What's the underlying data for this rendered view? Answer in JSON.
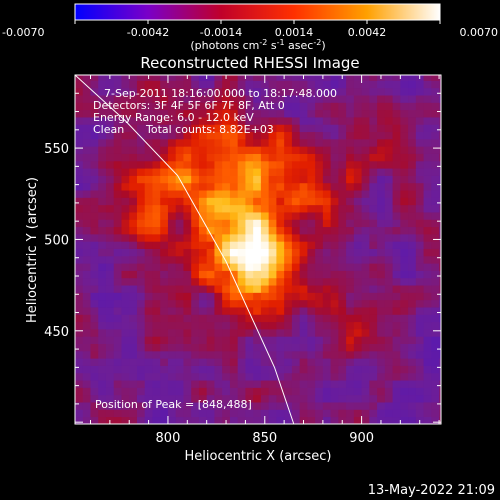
{
  "chart_data": {
    "type": "heatmap",
    "title": "Reconstructed RHESSI Image",
    "xlabel": "Heliocentric X (arcsec)",
    "ylabel": "Heliocentric Y (arcsec)",
    "xlim": [
      752,
      941
    ],
    "ylim": [
      399,
      590
    ],
    "x_ticks": [
      800,
      850,
      900
    ],
    "y_ticks": [
      450,
      500,
      550
    ],
    "colorbar": {
      "ticks": [
        "-0.0070",
        "-0.0042",
        "-0.0014",
        "0.0014",
        "0.0042",
        "0.0070"
      ],
      "min": -0.007,
      "max": 0.007,
      "units_label": "(photons cm",
      "units_sup1": "-2",
      "units_mid1": " s",
      "units_sup2": "-1",
      "units_mid2": " asec",
      "units_sup3": "-2",
      "units_end": ")",
      "colors": [
        "#0000ff",
        "#7a00c8",
        "#c0002a",
        "#ff3000",
        "#ffa000",
        "#ffffff"
      ]
    },
    "annotations": {
      "time_range": "7-Sep-2011 18:16:00.000 to 18:17:48.000",
      "detectors": "Detectors: 3F 4F 5F 6F 7F 8F, Att 0",
      "energy_range": "Energy Range: 6.0 - 12.0 keV",
      "method": "Clean",
      "total_counts": "Total counts: 8.82E+03",
      "peak_position": "Position of Peak = [848,488]"
    },
    "peak": [
      848,
      488
    ],
    "limb_arc": {
      "x": [
        752,
        778,
        805,
        830,
        855,
        865
      ],
      "y": [
        590,
        565,
        535,
        488,
        430,
        399
      ]
    },
    "sources": [
      {
        "x": 845,
        "y": 487,
        "sx": 16,
        "sy": 17,
        "amp": 0.0055
      },
      {
        "x": 840,
        "y": 515,
        "sx": 22,
        "sy": 30,
        "amp": 0.003
      },
      {
        "x": 815,
        "y": 545,
        "sx": 20,
        "sy": 25,
        "amp": 0.0025
      },
      {
        "x": 870,
        "y": 535,
        "sx": 25,
        "sy": 18,
        "amp": 0.002
      },
      {
        "x": 790,
        "y": 520,
        "sx": 15,
        "sy": 20,
        "amp": 0.0018
      },
      {
        "x": 900,
        "y": 455,
        "sx": 18,
        "sy": 15,
        "amp": 0.0012
      }
    ]
  },
  "footer": {
    "date": "13-May-2022 21:09"
  }
}
